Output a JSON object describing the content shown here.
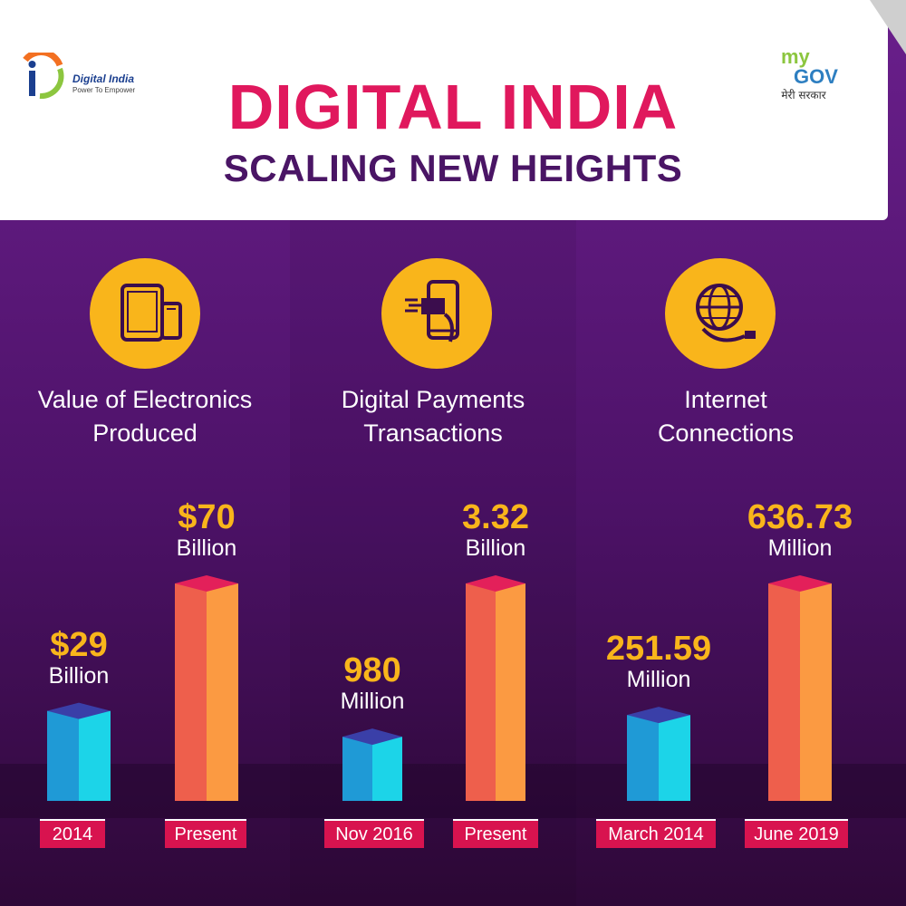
{
  "header": {
    "title": "DIGITAL INDIA",
    "subtitle": "SCALING NEW HEIGHTS",
    "logo_left": {
      "name": "Digital India",
      "tagline": "Power To Empower"
    },
    "logo_right": {
      "my": "my",
      "gov": "GOV",
      "sub": "मेरी सरकार"
    }
  },
  "colors": {
    "title": "#e0185d",
    "subtitle": "#4a1565",
    "value": "#f9b51b",
    "bar_before_front": "#1f9ad6",
    "bar_before_side": "#1cd4e8",
    "bar_before_top": "#3a3fa8",
    "bar_after_front": "#ee5f4c",
    "bar_after_side": "#fb9a42",
    "bar_after_top": "#e3205a",
    "xlabel_bg": "#d8134f"
  },
  "panels": [
    {
      "icon": "tablet-phone-icon",
      "label_line1": "Value of Electronics",
      "label_line2": "Produced",
      "before": {
        "value": "$29",
        "unit": "Billion",
        "period": "2014"
      },
      "after": {
        "value": "$70",
        "unit": "Billion",
        "period": "Present"
      }
    },
    {
      "icon": "mobile-payment-icon",
      "label_line1": "Digital Payments",
      "label_line2": "Transactions",
      "before": {
        "value": "980",
        "unit": "Million",
        "period": "Nov 2016"
      },
      "after": {
        "value": "3.32",
        "unit": "Billion",
        "period": "Present"
      }
    },
    {
      "icon": "globe-cable-icon",
      "label_line1": "Internet",
      "label_line2": "Connections",
      "before": {
        "value": "251.59",
        "unit": "Million",
        "period": "March 2014"
      },
      "after": {
        "value": "636.73",
        "unit": "Million",
        "period": "June 2019"
      }
    }
  ],
  "chart_data": [
    {
      "type": "bar",
      "title": "Value of Electronics Produced",
      "categories": [
        "2014",
        "Present"
      ],
      "values": [
        29,
        70
      ],
      "unit": "Billion USD"
    },
    {
      "type": "bar",
      "title": "Digital Payments Transactions",
      "categories": [
        "Nov 2016",
        "Present"
      ],
      "values": [
        0.98,
        3.32
      ],
      "unit": "Billion"
    },
    {
      "type": "bar",
      "title": "Internet Connections",
      "categories": [
        "March 2014",
        "June 2019"
      ],
      "values": [
        251.59,
        636.73
      ],
      "unit": "Million"
    }
  ]
}
